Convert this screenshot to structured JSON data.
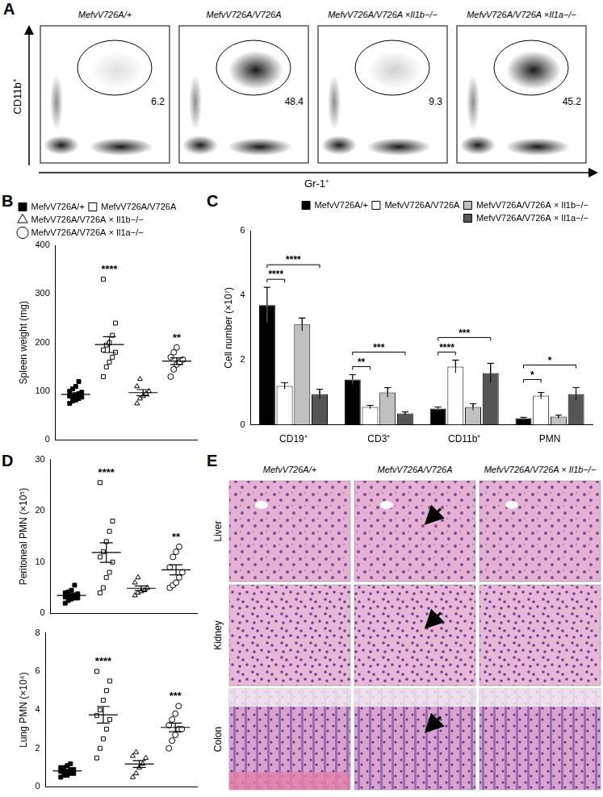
{
  "panel_labels": [
    "A",
    "B",
    "C",
    "D",
    "E"
  ],
  "panel_a": {
    "y_label": "CD11b⁺",
    "x_label": "Gr-1⁺",
    "plots": [
      {
        "title": "MefvV726A/+",
        "gate_percent": 6.2
      },
      {
        "title": "MefvV726A/V726A",
        "gate_percent": 48.4
      },
      {
        "title": "MefvV726A/V726A ×Il1b−/−",
        "gate_percent": 9.3
      },
      {
        "title": "MefvV726A/V726A ×Il1a−/−",
        "gate_percent": 45.2
      }
    ]
  },
  "panel_e": {
    "columns": [
      "MefvV726A/+",
      "MefvV726A/V726A",
      "MefvV726A/V726A × Il1b−/−"
    ],
    "rows": [
      "Liver",
      "Kidney",
      "Colon"
    ]
  },
  "chart_data": [
    {
      "type": "scatter",
      "y_label": "Spleen weight (mg)",
      "ylim": [
        0,
        400
      ],
      "yticks": [
        0,
        100,
        200,
        300,
        400
      ],
      "grid": false,
      "legend": "top-left",
      "tick_labels": "y",
      "series": [
        {
          "name": "MefvV726A/+",
          "color": "#000000",
          "marker": "square_filled",
          "values": [
            75,
            80,
            82,
            85,
            88,
            90,
            90,
            92,
            95,
            98,
            100,
            105,
            110,
            120
          ]
        },
        {
          "name": "MefvV726A/V726A",
          "color": "#000000",
          "marker": "square_open",
          "values": [
            130,
            150,
            160,
            170,
            180,
            185,
            195,
            200,
            215,
            240,
            330
          ]
        },
        {
          "name": "MefvV726A/V726A × Il1b−/−",
          "color": "#000000",
          "marker": "triangle_open",
          "values": [
            75,
            85,
            90,
            95,
            100,
            110,
            125
          ]
        },
        {
          "name": "MefvV726A/V726A × Il1a−/−",
          "color": "#000000",
          "marker": "circle_open",
          "values": [
            130,
            145,
            155,
            160,
            165,
            170,
            180,
            190
          ]
        }
      ],
      "annotations": [
        null,
        "****",
        null,
        "**"
      ]
    },
    {
      "type": "bar",
      "y_label": "Cell number (×10⁷)",
      "categories": [
        "CD19⁺",
        "CD3⁺",
        "CD11b⁺",
        "PMN"
      ],
      "ylim": [
        0,
        6
      ],
      "yticks": [
        0,
        2,
        4,
        6
      ],
      "grid": false,
      "legend": "top-right",
      "series": [
        {
          "name": "MefvV726A/+",
          "color": "#000000",
          "values": [
            3.7,
            1.4,
            0.5,
            0.2
          ],
          "errors": [
            0.55,
            0.15,
            0.05,
            0.03
          ]
        },
        {
          "name": "MefvV726A/V726A",
          "color": "#ffffff",
          "values": [
            1.2,
            0.55,
            1.8,
            0.9
          ],
          "errors": [
            0.1,
            0.05,
            0.2,
            0.1
          ]
        },
        {
          "name": "MefvV726A/V726A × Il1b−/−",
          "color": "#c0c0c0",
          "values": [
            3.1,
            1.0,
            0.55,
            0.25
          ],
          "errors": [
            0.2,
            0.15,
            0.1,
            0.05
          ]
        },
        {
          "name": "MefvV726A/V726A × Il1a−/−",
          "color": "#555555",
          "values": [
            0.95,
            0.35,
            1.6,
            0.95
          ],
          "errors": [
            0.15,
            0.05,
            0.3,
            0.2
          ]
        }
      ],
      "annotations": [
        {
          "category": "CD19⁺",
          "between": [
            "MefvV726A/+",
            "MefvV726A/V726A"
          ],
          "label": "****"
        },
        {
          "category": "CD19⁺",
          "between": [
            "MefvV726A/+",
            "MefvV726A/V726A × Il1a−/−"
          ],
          "label": "****"
        },
        {
          "category": "CD3⁺",
          "between": [
            "MefvV726A/+",
            "MefvV726A/V726A"
          ],
          "label": "**"
        },
        {
          "category": "CD3⁺",
          "between": [
            "MefvV726A/+",
            "MefvV726A/V726A × Il1a−/−"
          ],
          "label": "***"
        },
        {
          "category": "CD11b⁺",
          "between": [
            "MefvV726A/+",
            "MefvV726A/V726A"
          ],
          "label": "****"
        },
        {
          "category": "CD11b⁺",
          "between": [
            "MefvV726A/+",
            "MefvV726A/V726A × Il1a−/−"
          ],
          "label": "***"
        },
        {
          "category": "PMN",
          "between": [
            "MefvV726A/+",
            "MefvV726A/V726A"
          ],
          "label": "*"
        },
        {
          "category": "PMN",
          "between": [
            "MefvV726A/+",
            "MefvV726A/V726A × Il1a−/−"
          ],
          "label": "*"
        }
      ]
    },
    {
      "type": "scatter",
      "y_label": "Peritoneal PMN (×10⁵)",
      "ylim": [
        0,
        30
      ],
      "yticks": [
        0,
        10,
        20,
        30
      ],
      "grid": false,
      "tick_labels": "y",
      "series": [
        {
          "name": "MefvV726A/+",
          "color": "#000000",
          "marker": "square_filled",
          "values": [
            2,
            2.5,
            2.8,
            3,
            3,
            3.2,
            3.3,
            3.5,
            3.6,
            3.8,
            4,
            4.2,
            4.5,
            5.5
          ]
        },
        {
          "name": "MefvV726A/V726A",
          "color": "#000000",
          "marker": "square_open",
          "values": [
            4,
            5,
            7,
            8,
            10,
            11,
            12,
            14,
            16,
            18,
            25.5
          ]
        },
        {
          "name": "MefvV726A/V726A × Il1b−/−",
          "color": "#000000",
          "marker": "triangle_open",
          "values": [
            3.5,
            4,
            4.3,
            4.5,
            5,
            6,
            7
          ]
        },
        {
          "name": "MefvV726A/V726A × Il1a−/−",
          "color": "#000000",
          "marker": "circle_open",
          "values": [
            5,
            5.5,
            6,
            7,
            8,
            9,
            11,
            12,
            13
          ]
        }
      ],
      "annotations": [
        null,
        "****",
        null,
        "**"
      ]
    },
    {
      "type": "scatter",
      "y_label": "Lung PMN (×10⁴)",
      "ylim": [
        0,
        8
      ],
      "yticks": [
        0,
        2,
        4,
        6,
        8
      ],
      "grid": false,
      "tick_labels": "y",
      "series": [
        {
          "name": "MefvV726A/+",
          "color": "#000000",
          "marker": "square_filled",
          "values": [
            0.5,
            0.6,
            0.6,
            0.7,
            0.7,
            0.8,
            0.8,
            0.8,
            0.9,
            0.9,
            1.0,
            1.0,
            1.1,
            1.2
          ]
        },
        {
          "name": "MefvV726A/V726A",
          "color": "#000000",
          "marker": "square_open",
          "values": [
            1.5,
            2,
            2.5,
            3,
            3.5,
            3.7,
            4,
            4.5,
            5,
            5.5,
            6
          ]
        },
        {
          "name": "MefvV726A/V726A × Il1b−/−",
          "color": "#000000",
          "marker": "triangle_open",
          "values": [
            0.5,
            0.7,
            1,
            1.2,
            1.5,
            1.6,
            1.8
          ]
        },
        {
          "name": "MefvV726A/V726A × Il1a−/−",
          "color": "#000000",
          "marker": "circle_open",
          "values": [
            2,
            2.4,
            2.7,
            3,
            3,
            3.2,
            3.5,
            3.8,
            4.2
          ]
        }
      ],
      "annotations": [
        null,
        "****",
        null,
        "***"
      ]
    }
  ]
}
